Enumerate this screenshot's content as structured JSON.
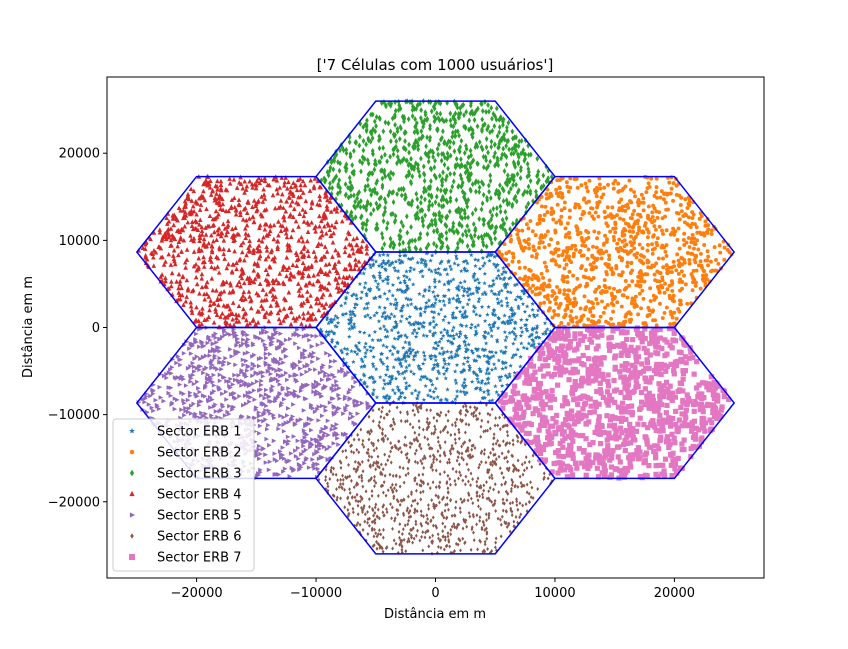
{
  "chart_data": {
    "type": "scatter",
    "title": "['7 Células com 1000 usuários']",
    "xlabel": "Distância em m",
    "ylabel": "Distância em m",
    "xlim": [
      -27500,
      27500
    ],
    "ylim": [
      -28750,
      28750
    ],
    "xticks": [
      -20000,
      -10000,
      0,
      10000,
      20000
    ],
    "yticks": [
      -20000,
      -10000,
      0,
      10000,
      20000
    ],
    "xtick_labels": [
      "−20000",
      "−10000",
      "0",
      "10000",
      "20000"
    ],
    "ytick_labels": [
      "−20000",
      "−10000",
      "0",
      "10000",
      "20000"
    ],
    "grid": false,
    "legend_position": "lower-left",
    "hexagon_color": "#0000ff",
    "cell_radius": 10000,
    "points_per_cell": 1000,
    "series": [
      {
        "name": "Sector ERB 1",
        "center": [
          0,
          0
        ],
        "color": "#1f77b4",
        "marker": "star"
      },
      {
        "name": "Sector ERB 2",
        "center": [
          15000,
          8660
        ],
        "color": "#ff7f0e",
        "marker": "circle"
      },
      {
        "name": "Sector ERB 3",
        "center": [
          0,
          17320
        ],
        "color": "#2ca02c",
        "marker": "diamond"
      },
      {
        "name": "Sector ERB 4",
        "center": [
          -15000,
          8660
        ],
        "color": "#d62728",
        "marker": "triangle-up"
      },
      {
        "name": "Sector ERB 5",
        "center": [
          -15000,
          -8660
        ],
        "color": "#9467bd",
        "marker": "triangle-right"
      },
      {
        "name": "Sector ERB 6",
        "center": [
          0,
          -17320
        ],
        "color": "#8c564b",
        "marker": "small-diamond"
      },
      {
        "name": "Sector ERB 7",
        "center": [
          15000,
          -8660
        ],
        "color": "#e377c2",
        "marker": "square"
      }
    ]
  }
}
